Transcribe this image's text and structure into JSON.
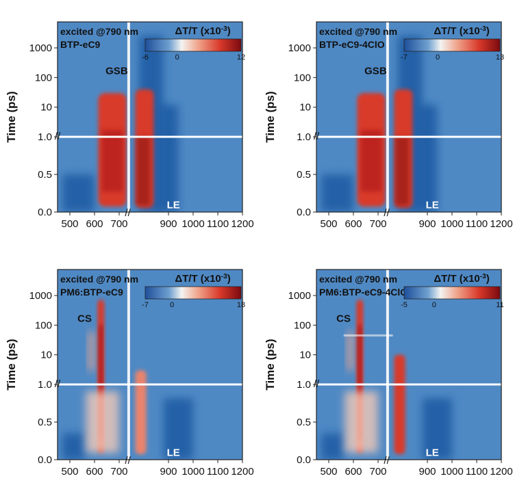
{
  "chart_data": [
    {
      "type": "heatmap",
      "panel": "top-left",
      "excitation": "excited @790 nm",
      "sample": "BTP-eC9",
      "colorbar": {
        "title": "ΔT/T (x10",
        "exp": "-3",
        "close": ")",
        "min": -6,
        "zero": 0,
        "max": 12,
        "min_label": "-6",
        "zero_label": "0",
        "max_label": "12"
      },
      "features": [
        {
          "label": "GSB",
          "x": 690,
          "region": "log"
        },
        {
          "label": "LE",
          "x": 920,
          "region": "linear"
        }
      ],
      "ylabel": "Time (ps)",
      "xlim": [
        450,
        1200
      ],
      "x_ticks": [
        "500",
        "600",
        "700",
        "900",
        "1000",
        "1100",
        "1200"
      ],
      "y_ticks_log": [
        "1000",
        "100",
        "10",
        "1.0"
      ],
      "y_ticks_linear": [
        "0.5",
        "0.0"
      ],
      "y_axis_break": 1.0
    },
    {
      "type": "heatmap",
      "panel": "top-right",
      "excitation": "excited @790 nm",
      "sample": "BTP-eC9-4ClO",
      "colorbar": {
        "title": "ΔT/T (x10",
        "exp": "-3",
        "close": ")",
        "min": -7,
        "zero": 0,
        "max": 13,
        "min_label": "-7",
        "zero_label": "0",
        "max_label": "13"
      },
      "features": [
        {
          "label": "GSB",
          "x": 690,
          "region": "log"
        },
        {
          "label": "LE",
          "x": 920,
          "region": "linear"
        }
      ],
      "ylabel": "Time (ps)",
      "xlim": [
        450,
        1200
      ],
      "x_ticks": [
        "500",
        "600",
        "700",
        "900",
        "1000",
        "1100",
        "1200"
      ],
      "y_ticks_log": [
        "1000",
        "100",
        "10",
        "1.0"
      ],
      "y_ticks_linear": [
        "0.5",
        "0.0"
      ],
      "y_axis_break": 1.0
    },
    {
      "type": "heatmap",
      "panel": "bottom-left",
      "excitation": "excited @790 nm",
      "sample": "PM6:BTP-eC9",
      "colorbar": {
        "title": "ΔT/T (x10",
        "exp": "-3",
        "close": ")",
        "min": -7,
        "zero": 0,
        "max": 18,
        "min_label": "-7",
        "zero_label": "0",
        "max_label": "18"
      },
      "features": [
        {
          "label": "CS",
          "x": 560,
          "region": "log"
        },
        {
          "label": "LE",
          "x": 920,
          "region": "linear"
        }
      ],
      "ylabel": "Time (ps)",
      "xlim": [
        450,
        1200
      ],
      "x_ticks": [
        "500",
        "600",
        "700",
        "900",
        "1000",
        "1100",
        "1200"
      ],
      "y_ticks_log": [
        "1000",
        "100",
        "10",
        "1.0"
      ],
      "y_ticks_linear": [
        "0.5",
        "0.0"
      ],
      "y_axis_break": 1.0
    },
    {
      "type": "heatmap",
      "panel": "bottom-right",
      "excitation": "excited @790 nm",
      "sample": "PM6:BTP-eC9-4ClO",
      "colorbar": {
        "title": "ΔT/T (x10",
        "exp": "-3",
        "close": ")",
        "min": -5,
        "zero": 0,
        "max": 11,
        "min_label": "-5",
        "zero_label": "0",
        "max_label": "11"
      },
      "features": [
        {
          "label": "CS",
          "x": 560,
          "region": "log"
        },
        {
          "label": "LE",
          "x": 920,
          "region": "linear"
        }
      ],
      "ylabel": "Time (ps)",
      "xlim": [
        450,
        1200
      ],
      "x_ticks": [
        "500",
        "600",
        "700",
        "900",
        "1000",
        "1100",
        "1200"
      ],
      "y_ticks_log": [
        "1000",
        "100",
        "10",
        "1.0"
      ],
      "y_ticks_linear": [
        "0.5",
        "0.0"
      ],
      "y_axis_break": 1.0
    }
  ],
  "colors": {
    "background": "#4f89c4",
    "deep_blue": "#1f5aa3",
    "white": "#f3f3f1",
    "red": "#d83a2a",
    "dark_red": "#7a0a10"
  }
}
